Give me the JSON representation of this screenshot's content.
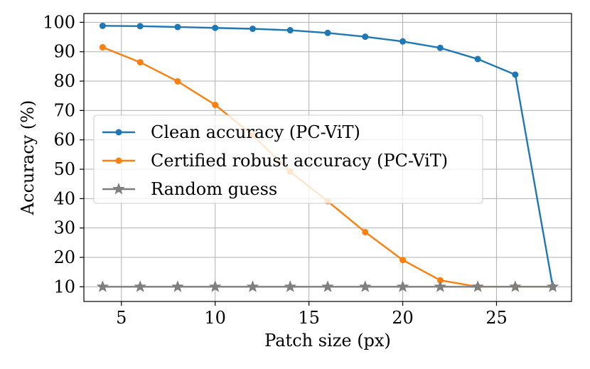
{
  "chart_data": {
    "type": "line",
    "title": "",
    "xlabel": "Patch size (px)",
    "ylabel": "Accuracy (%)",
    "xlim": [
      3,
      29
    ],
    "ylim": [
      5,
      103
    ],
    "xticks": [
      5,
      10,
      15,
      20,
      25
    ],
    "yticks": [
      10,
      20,
      30,
      40,
      50,
      60,
      70,
      80,
      90,
      100
    ],
    "grid": true,
    "legend_position": "center-left",
    "x": [
      4,
      6,
      8,
      10,
      12,
      14,
      16,
      18,
      20,
      22,
      24,
      26,
      28
    ],
    "series": [
      {
        "name": "Clean accuracy (PC-ViT)",
        "color": "#1f77b4",
        "marker": "circle",
        "values": [
          98.8,
          98.7,
          98.4,
          98.1,
          97.8,
          97.3,
          96.4,
          95.1,
          93.5,
          91.3,
          87.5,
          82.2,
          10.0
        ]
      },
      {
        "name": "Certified robust accuracy (PC-ViT)",
        "color": "#ff7f0e",
        "marker": "circle",
        "values": [
          91.5,
          86.4,
          79.9,
          71.9,
          61.6,
          49.2,
          39.1,
          28.6,
          19.1,
          12.2,
          10.0,
          10.0,
          10.0
        ]
      },
      {
        "name": "Random guess",
        "color": "#7f7f7f",
        "marker": "star",
        "values": [
          10,
          10,
          10,
          10,
          10,
          10,
          10,
          10,
          10,
          10,
          10,
          10,
          10
        ]
      }
    ]
  }
}
